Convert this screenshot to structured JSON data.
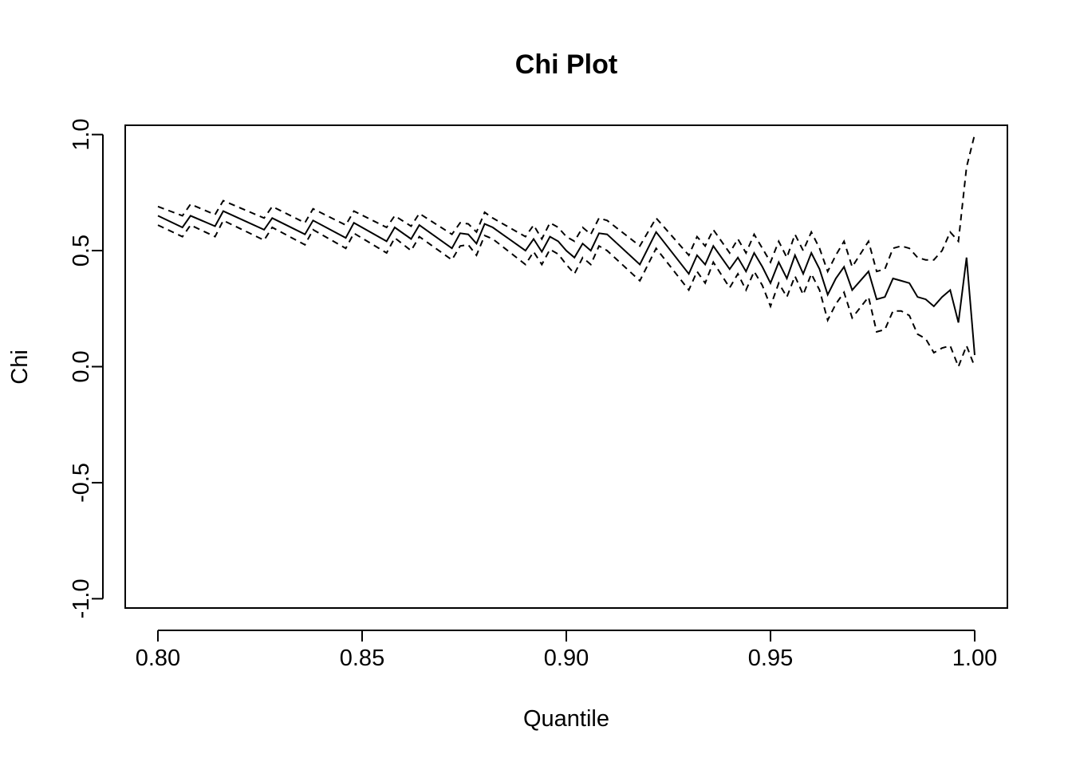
{
  "chart_data": {
    "type": "line",
    "title": "Chi Plot",
    "xlabel": "Quantile",
    "ylabel": "Chi",
    "xlim": [
      0.792,
      1.008
    ],
    "ylim": [
      -1.04,
      1.04
    ],
    "x_ticks": [
      {
        "value": 0.8,
        "label": "0.80"
      },
      {
        "value": 0.85,
        "label": "0.85"
      },
      {
        "value": 0.9,
        "label": "0.90"
      },
      {
        "value": 0.95,
        "label": "0.95"
      },
      {
        "value": 1.0,
        "label": "1.00"
      }
    ],
    "y_ticks": [
      {
        "value": -1.0,
        "label": "-1.0"
      },
      {
        "value": -0.5,
        "label": "-0.5"
      },
      {
        "value": 0.0,
        "label": "0.0"
      },
      {
        "value": 0.5,
        "label": "0.5"
      },
      {
        "value": 1.0,
        "label": "1.0"
      }
    ],
    "grid": false,
    "series": [
      {
        "role": "estimate",
        "linestyle": "solid",
        "x": [
          0.8,
          0.806,
          0.808,
          0.814,
          0.816,
          0.826,
          0.828,
          0.836,
          0.838,
          0.846,
          0.848,
          0.856,
          0.858,
          0.862,
          0.864,
          0.872,
          0.874,
          0.876,
          0.878,
          0.88,
          0.882,
          0.89,
          0.892,
          0.894,
          0.896,
          0.898,
          0.9,
          0.902,
          0.904,
          0.906,
          0.908,
          0.91,
          0.918,
          0.922,
          0.93,
          0.932,
          0.934,
          0.936,
          0.94,
          0.942,
          0.944,
          0.946,
          0.948,
          0.95,
          0.952,
          0.954,
          0.956,
          0.958,
          0.96,
          0.962,
          0.964,
          0.966,
          0.968,
          0.97,
          0.974,
          0.976,
          0.978,
          0.98,
          0.982,
          0.984,
          0.986,
          0.988,
          0.99,
          0.992,
          0.994,
          0.996,
          0.998,
          1.0
        ],
        "y": [
          0.65,
          0.6,
          0.65,
          0.605,
          0.67,
          0.59,
          0.64,
          0.57,
          0.63,
          0.555,
          0.62,
          0.54,
          0.6,
          0.55,
          0.61,
          0.51,
          0.575,
          0.57,
          0.53,
          0.615,
          0.6,
          0.5,
          0.55,
          0.495,
          0.56,
          0.54,
          0.5,
          0.47,
          0.53,
          0.5,
          0.575,
          0.57,
          0.44,
          0.58,
          0.4,
          0.48,
          0.44,
          0.52,
          0.42,
          0.47,
          0.41,
          0.49,
          0.43,
          0.36,
          0.45,
          0.38,
          0.48,
          0.4,
          0.49,
          0.42,
          0.31,
          0.38,
          0.43,
          0.33,
          0.41,
          0.29,
          0.3,
          0.38,
          0.37,
          0.36,
          0.3,
          0.29,
          0.26,
          0.3,
          0.33,
          0.19,
          0.47,
          0.05
        ]
      },
      {
        "role": "upper bound",
        "linestyle": "dashed",
        "x": [
          0.8,
          0.806,
          0.808,
          0.814,
          0.816,
          0.826,
          0.828,
          0.836,
          0.838,
          0.846,
          0.848,
          0.856,
          0.858,
          0.862,
          0.864,
          0.872,
          0.874,
          0.876,
          0.878,
          0.88,
          0.882,
          0.89,
          0.892,
          0.894,
          0.896,
          0.898,
          0.9,
          0.902,
          0.904,
          0.906,
          0.908,
          0.91,
          0.918,
          0.922,
          0.93,
          0.932,
          0.934,
          0.936,
          0.94,
          0.942,
          0.944,
          0.946,
          0.948,
          0.95,
          0.952,
          0.954,
          0.956,
          0.958,
          0.96,
          0.962,
          0.964,
          0.966,
          0.968,
          0.97,
          0.974,
          0.976,
          0.978,
          0.98,
          0.982,
          0.984,
          0.986,
          0.988,
          0.99,
          0.992,
          0.994,
          0.996,
          0.998,
          1.0
        ],
        "y": [
          0.69,
          0.65,
          0.7,
          0.655,
          0.715,
          0.64,
          0.69,
          0.62,
          0.68,
          0.61,
          0.67,
          0.6,
          0.65,
          0.605,
          0.66,
          0.57,
          0.62,
          0.615,
          0.58,
          0.665,
          0.64,
          0.56,
          0.61,
          0.55,
          0.62,
          0.6,
          0.56,
          0.54,
          0.6,
          0.57,
          0.64,
          0.63,
          0.52,
          0.64,
          0.48,
          0.56,
          0.52,
          0.59,
          0.49,
          0.55,
          0.49,
          0.57,
          0.51,
          0.45,
          0.54,
          0.47,
          0.57,
          0.5,
          0.58,
          0.51,
          0.41,
          0.48,
          0.54,
          0.43,
          0.54,
          0.41,
          0.42,
          0.51,
          0.52,
          0.51,
          0.47,
          0.46,
          0.46,
          0.5,
          0.58,
          0.54,
          0.86,
          1.0
        ]
      },
      {
        "role": "lower bound",
        "linestyle": "dashed",
        "x": [
          0.8,
          0.806,
          0.808,
          0.814,
          0.816,
          0.826,
          0.828,
          0.836,
          0.838,
          0.846,
          0.848,
          0.856,
          0.858,
          0.862,
          0.864,
          0.872,
          0.874,
          0.876,
          0.878,
          0.88,
          0.882,
          0.89,
          0.892,
          0.894,
          0.896,
          0.898,
          0.9,
          0.902,
          0.904,
          0.906,
          0.908,
          0.91,
          0.918,
          0.922,
          0.93,
          0.932,
          0.934,
          0.936,
          0.94,
          0.942,
          0.944,
          0.946,
          0.948,
          0.95,
          0.952,
          0.954,
          0.956,
          0.958,
          0.96,
          0.962,
          0.964,
          0.966,
          0.968,
          0.97,
          0.974,
          0.976,
          0.978,
          0.98,
          0.982,
          0.984,
          0.986,
          0.988,
          0.99,
          0.992,
          0.994,
          0.996,
          0.998,
          1.0
        ],
        "y": [
          0.61,
          0.56,
          0.61,
          0.56,
          0.63,
          0.545,
          0.6,
          0.525,
          0.59,
          0.51,
          0.575,
          0.49,
          0.555,
          0.5,
          0.56,
          0.46,
          0.52,
          0.525,
          0.48,
          0.565,
          0.55,
          0.44,
          0.495,
          0.44,
          0.505,
          0.485,
          0.44,
          0.4,
          0.47,
          0.44,
          0.52,
          0.5,
          0.37,
          0.51,
          0.33,
          0.41,
          0.36,
          0.45,
          0.34,
          0.4,
          0.33,
          0.41,
          0.35,
          0.26,
          0.36,
          0.3,
          0.39,
          0.31,
          0.4,
          0.33,
          0.2,
          0.27,
          0.32,
          0.21,
          0.3,
          0.15,
          0.16,
          0.24,
          0.24,
          0.22,
          0.14,
          0.12,
          0.06,
          0.08,
          0.09,
          0.0,
          0.09,
          0.0
        ]
      }
    ]
  }
}
